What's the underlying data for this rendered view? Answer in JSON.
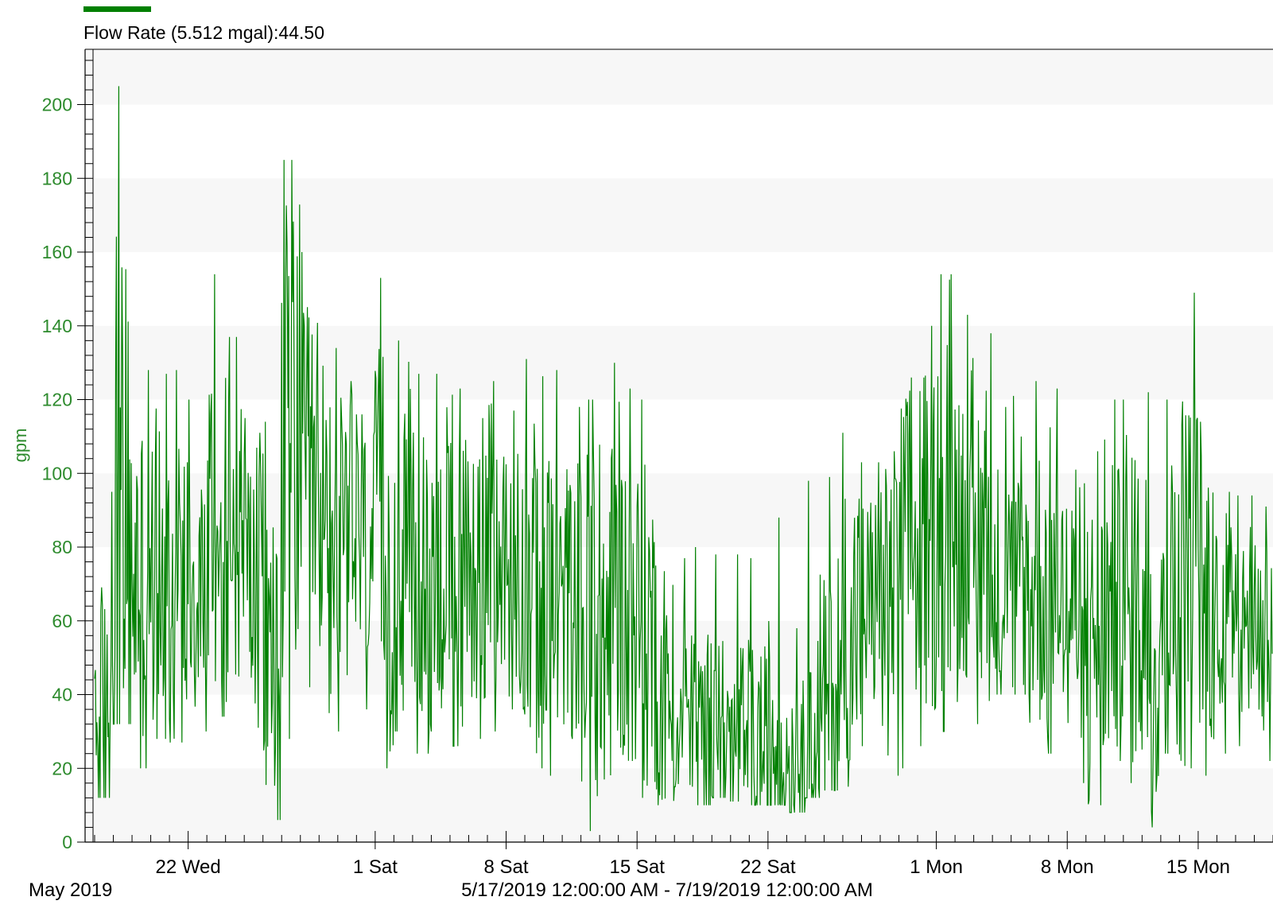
{
  "legend": {
    "label": "Flow Rate (5.512 mgal):44.50",
    "color": "#008000"
  },
  "colors": {
    "series": "#008000",
    "axis_text": "#2e8b2e",
    "band_light": "#f7f7f7",
    "band_white": "#ffffff",
    "axis_line": "#000000"
  },
  "footer": {
    "month_label": "May 2019",
    "range_label": "5/17/2019 12:00:00 AM - 7/19/2019 12:00:00 AM"
  },
  "chart_data": {
    "type": "line",
    "ylabel": "gpm",
    "ylim": [
      0,
      215
    ],
    "yticks": [
      0,
      20,
      40,
      60,
      80,
      100,
      120,
      140,
      160,
      180,
      200
    ],
    "xlim": [
      "2019-05-17",
      "2019-07-19"
    ],
    "xticks": [
      {
        "date": "2019-05-22",
        "label": "22 Wed"
      },
      {
        "date": "2019-06-01",
        "label": "1 Sat"
      },
      {
        "date": "2019-06-08",
        "label": "8 Sat"
      },
      {
        "date": "2019-06-15",
        "label": "15 Sat"
      },
      {
        "date": "2019-06-22",
        "label": "22 Sat"
      },
      {
        "date": "2019-07-01",
        "label": "1 Mon"
      },
      {
        "date": "2019-07-08",
        "label": "8 Mon"
      },
      {
        "date": "2019-07-15",
        "label": "15 Mon"
      }
    ],
    "series": [
      {
        "name": "Flow Rate (5.512 mgal):44.50",
        "x": [
          "2019-05-17",
          "2019-05-18",
          "2019-05-19",
          "2019-05-20",
          "2019-05-21",
          "2019-05-22",
          "2019-05-23",
          "2019-05-24",
          "2019-05-25",
          "2019-05-26",
          "2019-05-27",
          "2019-05-28",
          "2019-05-29",
          "2019-05-30",
          "2019-05-31",
          "2019-06-01",
          "2019-06-02",
          "2019-06-03",
          "2019-06-04",
          "2019-06-05",
          "2019-06-06",
          "2019-06-07",
          "2019-06-08",
          "2019-06-09",
          "2019-06-10",
          "2019-06-11",
          "2019-06-12",
          "2019-06-13",
          "2019-06-14",
          "2019-06-15",
          "2019-06-16",
          "2019-06-17",
          "2019-06-18",
          "2019-06-19",
          "2019-06-20",
          "2019-06-21",
          "2019-06-22",
          "2019-06-23",
          "2019-06-24",
          "2019-06-25",
          "2019-06-26",
          "2019-06-27",
          "2019-06-28",
          "2019-06-29",
          "2019-06-30",
          "2019-07-01",
          "2019-07-02",
          "2019-07-03",
          "2019-07-04",
          "2019-07-05",
          "2019-07-06",
          "2019-07-07",
          "2019-07-08",
          "2019-07-09",
          "2019-07-10",
          "2019-07-11",
          "2019-07-12",
          "2019-07-13",
          "2019-07-14",
          "2019-07-15",
          "2019-07-16",
          "2019-07-17",
          "2019-07-18"
        ],
        "daily_min": [
          12,
          32,
          20,
          28,
          27,
          30,
          34,
          38,
          31,
          6,
          28,
          42,
          35,
          30,
          36,
          20,
          30,
          24,
          30,
          26,
          28,
          30,
          36,
          20,
          18,
          28,
          3,
          17,
          22,
          12,
          10,
          15,
          10,
          12,
          11,
          10,
          10,
          8,
          12,
          14,
          15,
          26,
          18,
          20,
          26,
          30,
          38,
          32,
          40,
          40,
          28,
          24,
          16,
          10,
          22,
          16,
          4,
          24,
          20,
          18,
          24,
          26,
          22
        ],
        "daily_max": [
          95,
          205,
          128,
          127,
          128,
          120,
          154,
          137,
          115,
          114,
          185,
          160,
          134,
          125,
          116,
          153,
          136,
          127,
          127,
          123,
          115,
          125,
          117,
          131,
          128,
          118,
          120,
          130,
          123,
          120,
          75,
          77,
          80,
          78,
          78,
          77,
          88,
          58,
          98,
          99,
          111,
          103,
          106,
          126,
          140,
          154,
          143,
          138,
          118,
          121,
          125,
          123,
          101,
          106,
          120,
          120,
          122,
          120,
          149,
          114,
          95,
          94,
          91
        ],
        "daily_mean": [
          40,
          85,
          72,
          70,
          68,
          72,
          84,
          86,
          72,
          52,
          110,
          96,
          90,
          82,
          80,
          78,
          72,
          70,
          72,
          70,
          74,
          70,
          70,
          68,
          64,
          66,
          60,
          62,
          64,
          58,
          38,
          32,
          28,
          30,
          28,
          26,
          30,
          24,
          26,
          36,
          62,
          64,
          66,
          78,
          82,
          90,
          88,
          82,
          72,
          68,
          70,
          72,
          62,
          54,
          62,
          62,
          58,
          66,
          72,
          68,
          64,
          66,
          62
        ]
      }
    ]
  }
}
